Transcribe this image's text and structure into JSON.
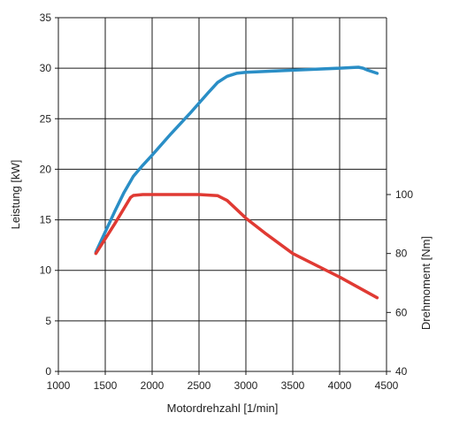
{
  "chart_data": {
    "type": "line",
    "title": "",
    "xlabel": "Motordrehzahl [1/min]",
    "ylabel": "Leistung [kW]",
    "y2label": "Drehmoment [Nm]",
    "xlim": [
      1000,
      4500
    ],
    "ylim": [
      0,
      35
    ],
    "y2lim": [
      40,
      160
    ],
    "x_ticks": [
      1000,
      1500,
      2000,
      2500,
      3000,
      3500,
      4000,
      4500
    ],
    "y_ticks": [
      0,
      5,
      10,
      15,
      20,
      25,
      30,
      35
    ],
    "y2_ticks": [
      40,
      60,
      80,
      100
    ],
    "grid": true,
    "series": [
      {
        "axis": "left",
        "color": "#2a8ec6",
        "x": [
          1400,
          1500,
          1600,
          1700,
          1800,
          1900,
          2000,
          2200,
          2400,
          2600,
          2700,
          2800,
          2900,
          3000,
          3500,
          4000,
          4200,
          4250,
          4300,
          4400
        ],
        "values": [
          11.8,
          13.8,
          15.8,
          17.7,
          19.3,
          20.4,
          21.4,
          23.5,
          25.5,
          27.6,
          28.6,
          29.2,
          29.5,
          29.6,
          29.8,
          30.0,
          30.1,
          30.0,
          29.8,
          29.5
        ]
      },
      {
        "axis": "right",
        "color": "#e03a33",
        "x": [
          1400,
          1600,
          1770,
          1800,
          1900,
          2000,
          2500,
          2700,
          2800,
          2900,
          3000,
          3200,
          3500,
          4000,
          4400
        ],
        "values": [
          80,
          90,
          99,
          99.7,
          100,
          100,
          100,
          99.6,
          98,
          95,
          92,
          87,
          80,
          72,
          65
        ]
      }
    ]
  }
}
